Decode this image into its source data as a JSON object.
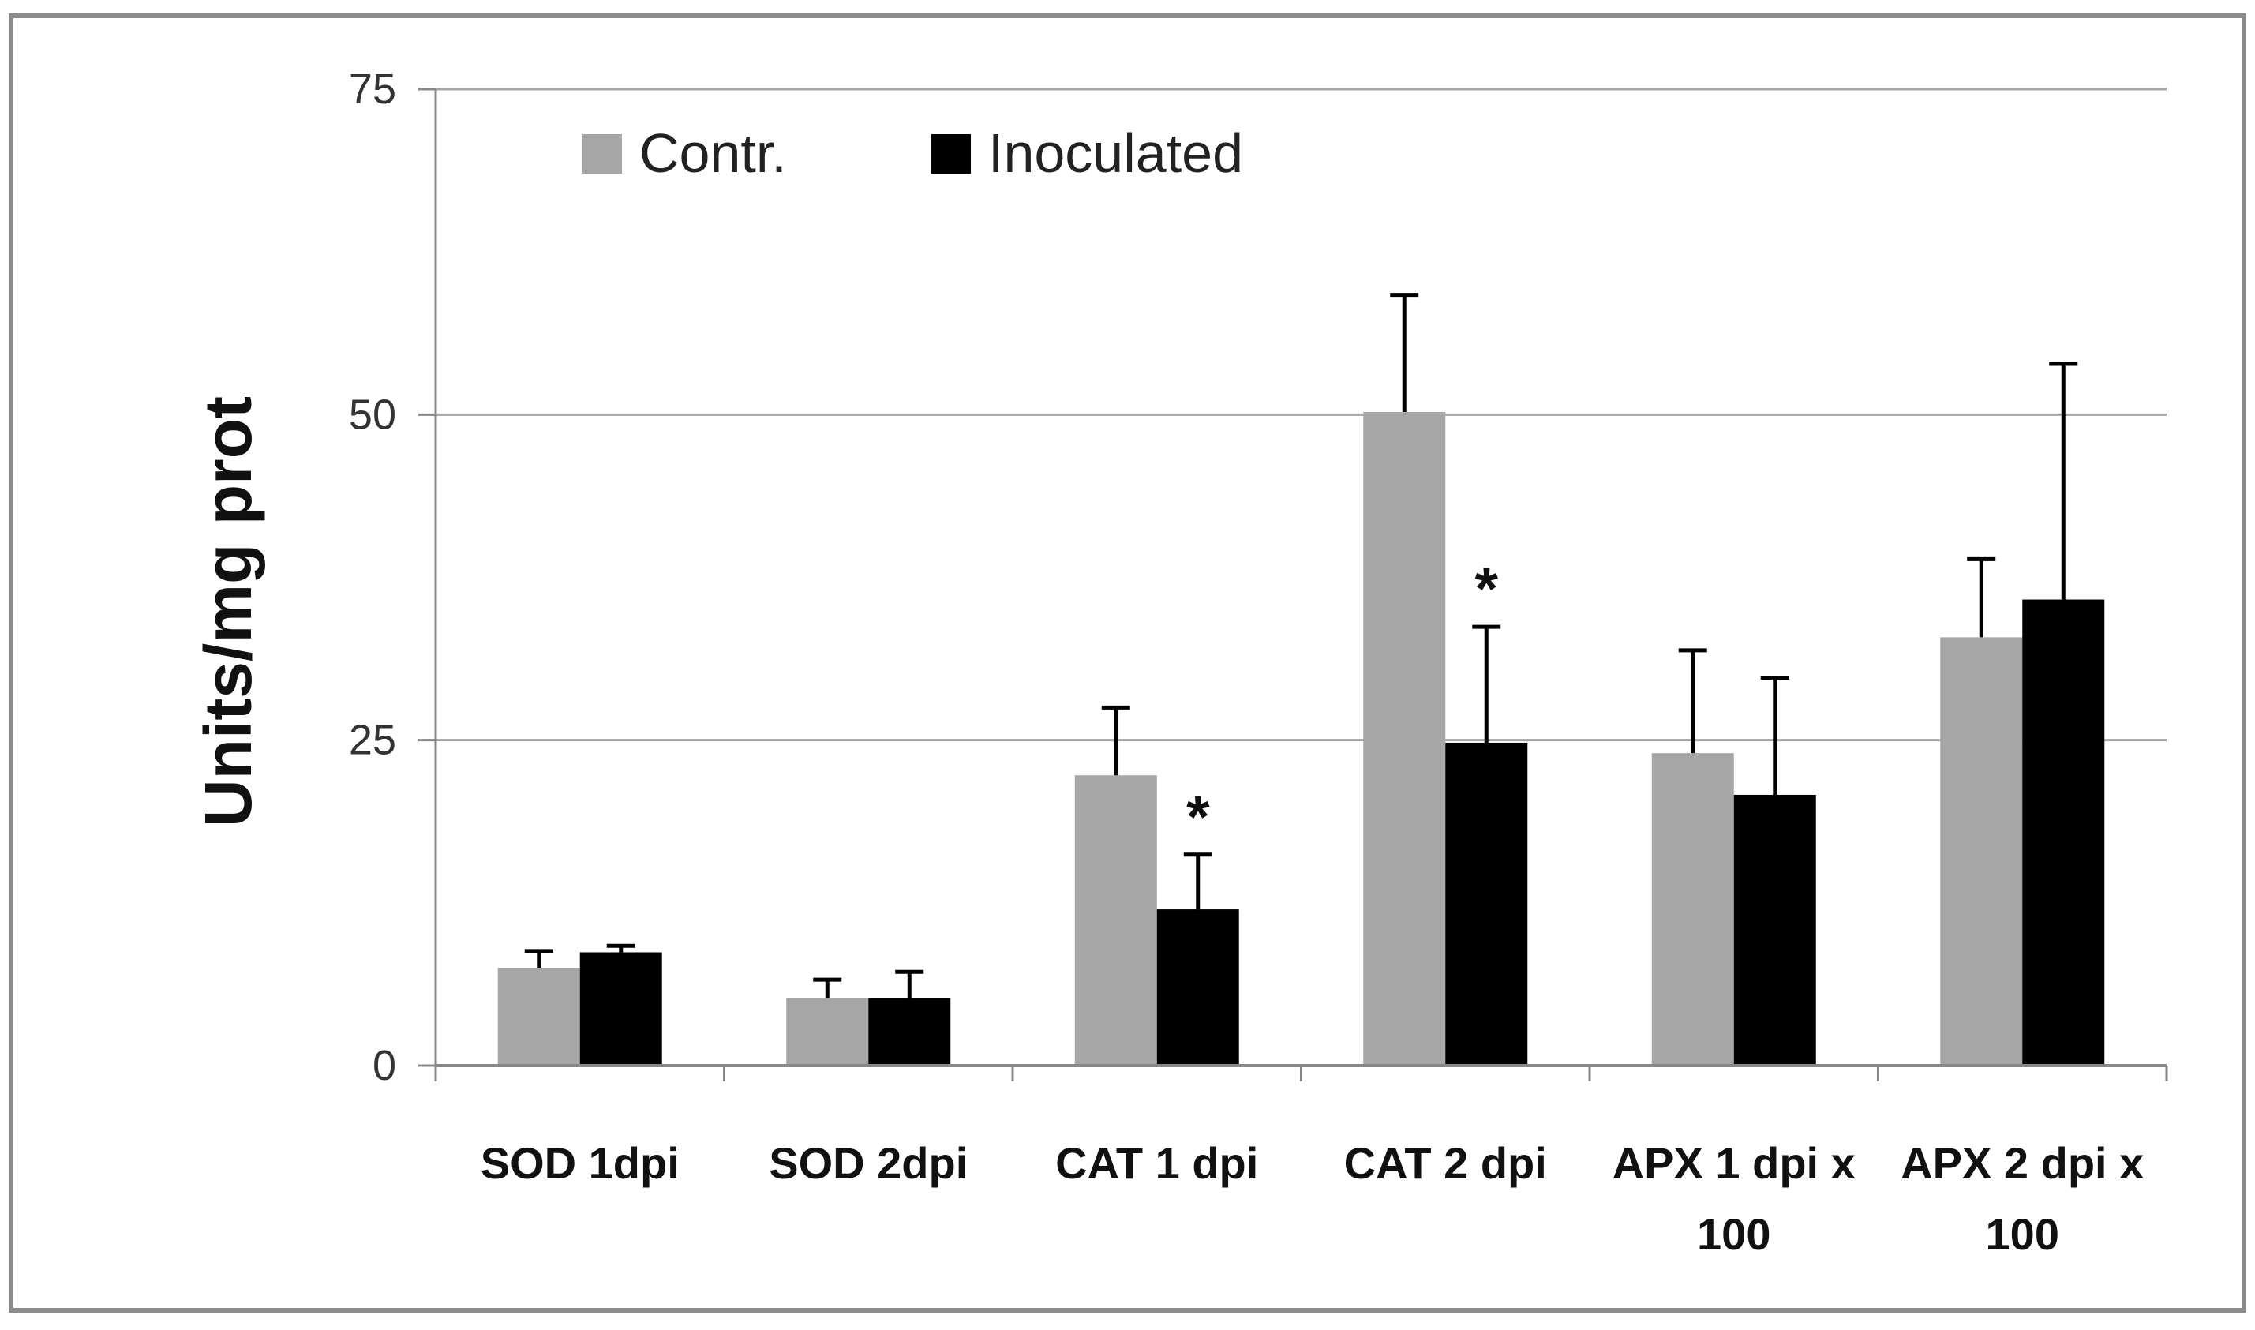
{
  "chart_data": {
    "type": "bar",
    "title": "",
    "xlabel": "",
    "ylabel": "Units/mg prot",
    "ylim": [
      0,
      75
    ],
    "yticks": [
      "0",
      "25",
      "50",
      "75"
    ],
    "grid": "horizontal",
    "legend_position": "top-left",
    "categories": [
      [
        "SOD 1dpi"
      ],
      [
        "SOD 2dpi"
      ],
      [
        "CAT 1 dpi"
      ],
      [
        "CAT 2 dpi"
      ],
      [
        "APX 1 dpi x",
        "100"
      ],
      [
        "APX 2 dpi x",
        "100"
      ]
    ],
    "series": [
      {
        "name": "Contr.",
        "color": "#a6a6a6",
        "values": [
          7.5,
          5.2,
          22.3,
          50.2,
          24.0,
          32.9
        ],
        "errors": [
          1.3,
          1.4,
          5.2,
          9.0,
          7.9,
          6.0
        ]
      },
      {
        "name": "Inoculated",
        "color": "#000000",
        "values": [
          8.7,
          5.2,
          12.0,
          24.8,
          20.8,
          35.8
        ],
        "errors": [
          0.5,
          2.0,
          4.2,
          8.9,
          9.0,
          18.1
        ]
      }
    ],
    "annotations": [
      {
        "text": "*",
        "category": 2,
        "series": 1
      },
      {
        "text": "*",
        "category": 3,
        "series": 1
      }
    ]
  }
}
